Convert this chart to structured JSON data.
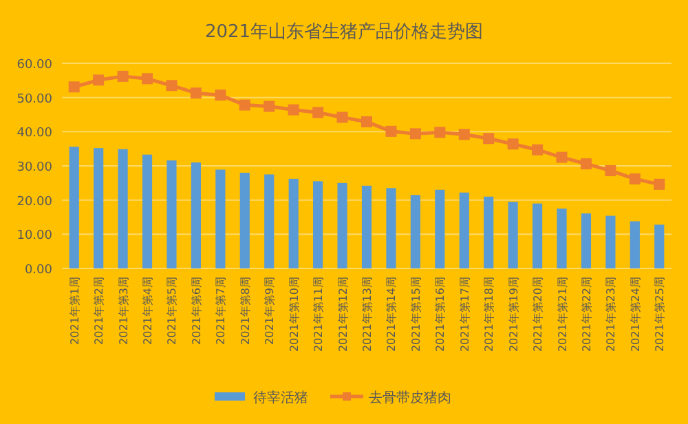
{
  "chart_data": {
    "type": "bar",
    "title": "2021年山东省生猪产品价格走势图",
    "categories": [
      "2021年第1周",
      "2021年第2周",
      "2021年第3周",
      "2021年第4周",
      "2021年第5周",
      "2021年第6周",
      "2021年第7周",
      "2021年第8周",
      "2021年第9周",
      "2021年第10周",
      "2021年第11周",
      "2021年第12周",
      "2021年第13周",
      "2021年第14周",
      "2021年第15周",
      "2021年第16周",
      "2021年第17周",
      "2021年第18周",
      "2021年第19周",
      "2021年第20周",
      "2021年第21周",
      "2021年第22周",
      "2021年第23周",
      "2021年第24周",
      "2021年第25周"
    ],
    "series": [
      {
        "name": "待宰活猪",
        "color": "#5b9bd5",
        "values": [
          35.6,
          35.2,
          34.9,
          33.3,
          31.6,
          31,
          28.9,
          28,
          27.5,
          26.2,
          25.5,
          25,
          24.2,
          23.5,
          21.5,
          23,
          22.2,
          21,
          19.5,
          19,
          17.5,
          16.1,
          15.4,
          13.8,
          12.8
        ]
      },
      {
        "name": "去骨带皮猪肉",
        "type": "line",
        "color": "#ed7d31",
        "marker": "square",
        "values": [
          53.1,
          55.1,
          56.2,
          55.5,
          53.5,
          51.3,
          50.7,
          47.8,
          47.4,
          46.4,
          45.6,
          44.2,
          42.9,
          40.1,
          39.4,
          39.8,
          39.2,
          38,
          36.4,
          34.7,
          32.5,
          30.6,
          28.6,
          26.2,
          24.6
        ]
      }
    ],
    "ylim": [
      0,
      60
    ],
    "yticks": [
      {
        "value": 0,
        "label": "0.00"
      },
      {
        "value": 10,
        "label": "10.00"
      },
      {
        "value": 20,
        "label": "20.00"
      },
      {
        "value": 30,
        "label": "30.00"
      },
      {
        "value": 40,
        "label": "40.00"
      },
      {
        "value": 50,
        "label": "50.00"
      },
      {
        "value": 60,
        "label": "60.00"
      }
    ],
    "grid": "y",
    "legend": "bottom"
  }
}
